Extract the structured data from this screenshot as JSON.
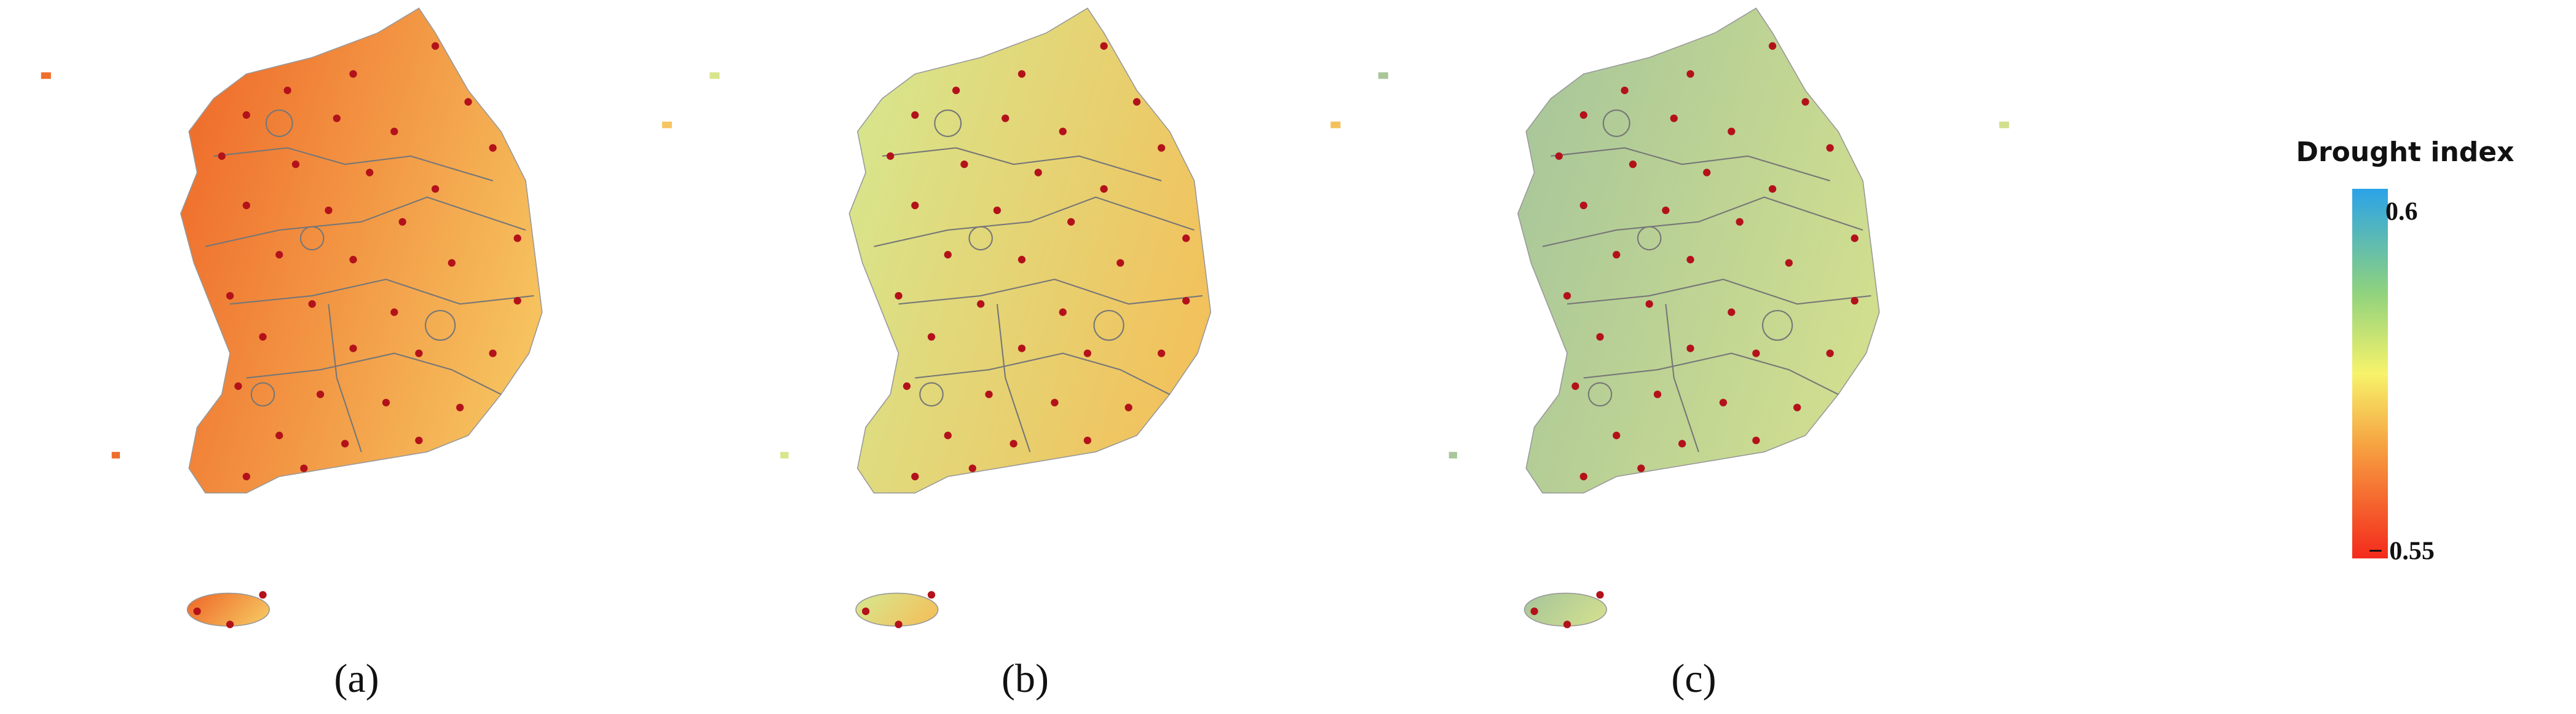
{
  "panels": [
    {
      "label": "(a)",
      "colors": [
        "#ef6e2c",
        "#f6c560"
      ]
    },
    {
      "label": "(b)",
      "colors": [
        "#d8e58c",
        "#f3c05a"
      ]
    },
    {
      "label": "(c)",
      "colors": [
        "#a9c79a",
        "#d2df8e"
      ]
    }
  ],
  "legend": {
    "title": "Drought index",
    "ticks": [
      {
        "value": 0.6,
        "label": "0.6"
      },
      {
        "value": -0.55,
        "label": "− 0.55"
      }
    ]
  }
}
